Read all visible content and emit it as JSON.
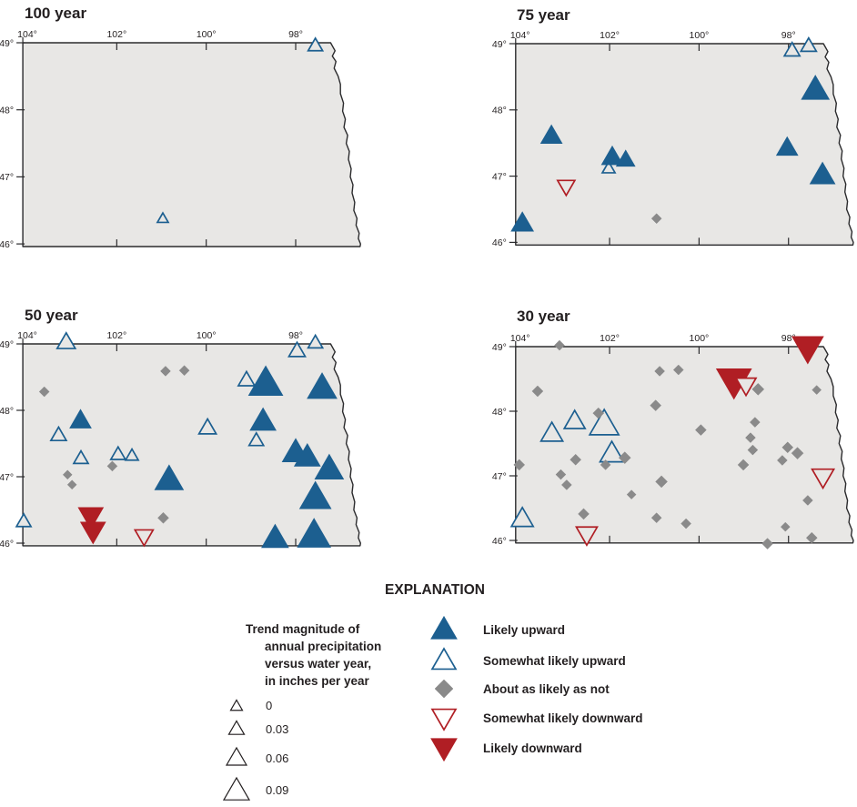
{
  "colors": {
    "map_fill": "#e8e7e5",
    "map_border": "#2b2b2d",
    "blue": "#1c5f90",
    "red": "#b01e24",
    "grey": "#8a8a8a",
    "text": "#231f20",
    "scale_triangle": "#231f20"
  },
  "explanation": {
    "title": "EXPLANATION",
    "size_scale": {
      "heading_lines": [
        "Trend magnitude of",
        "annual precipitation",
        "versus water year,",
        "in inches per year"
      ],
      "entries": [
        {
          "label": "0",
          "size": 13
        },
        {
          "label": "0.03",
          "size": 17
        },
        {
          "label": "0.06",
          "size": 22
        },
        {
          "label": "0.09",
          "size": 28
        }
      ]
    },
    "categories": [
      {
        "type": "likely_upward",
        "label": "Likely upward"
      },
      {
        "type": "somewhat_likely_upward",
        "label": "Somewhat likely upward"
      },
      {
        "type": "about_as_likely_as_not",
        "label": "About as likely as not"
      },
      {
        "type": "somewhat_likely_downward",
        "label": "Somewhat likely downward"
      },
      {
        "type": "likely_downward",
        "label": "Likely downward"
      }
    ]
  },
  "chart_data": {
    "type": "scatter",
    "lon_ticks": [
      {
        "label": "104°",
        "value": 104
      },
      {
        "label": "102°",
        "value": 102
      },
      {
        "label": "100°",
        "value": 100
      },
      {
        "label": "98°",
        "value": 98
      }
    ],
    "lat_ticks": [
      {
        "label": "49°",
        "value": 49
      },
      {
        "label": "48°",
        "value": 48
      },
      {
        "label": "47°",
        "value": 47
      },
      {
        "label": "46°",
        "value": 46
      }
    ],
    "outline": [
      [
        104.1,
        49.0
      ],
      [
        97.22,
        49.0
      ],
      [
        97.12,
        48.88
      ],
      [
        97.18,
        48.8
      ],
      [
        97.1,
        48.72
      ],
      [
        97.14,
        48.62
      ],
      [
        97.05,
        48.5
      ],
      [
        97.0,
        48.38
      ],
      [
        97.0,
        48.24
      ],
      [
        96.93,
        48.1
      ],
      [
        96.95,
        47.98
      ],
      [
        96.89,
        47.86
      ],
      [
        96.92,
        47.74
      ],
      [
        96.84,
        47.62
      ],
      [
        96.87,
        47.5
      ],
      [
        96.8,
        47.38
      ],
      [
        96.82,
        47.26
      ],
      [
        96.76,
        47.12
      ],
      [
        96.78,
        47.0
      ],
      [
        96.72,
        46.88
      ],
      [
        96.74,
        46.76
      ],
      [
        96.68,
        46.62
      ],
      [
        96.7,
        46.5
      ],
      [
        96.63,
        46.38
      ],
      [
        96.65,
        46.28
      ],
      [
        96.58,
        46.16
      ],
      [
        96.6,
        46.08
      ],
      [
        96.55,
        46.0
      ],
      [
        96.56,
        45.96
      ],
      [
        104.1,
        45.96
      ]
    ],
    "maps": [
      {
        "title": "100 year",
        "symbols": [
          {
            "lon": 97.56,
            "lat": 48.96,
            "type": "somewhat_likely_upward",
            "size": 16
          },
          {
            "lon": 100.97,
            "lat": 46.38,
            "type": "somewhat_likely_upward",
            "size": 12
          }
        ]
      },
      {
        "title": "75 year",
        "symbols": [
          {
            "lon": 100.95,
            "lat": 46.36,
            "type": "about_as_likely_as_not",
            "size": 11
          },
          {
            "lon": 97.92,
            "lat": 48.9,
            "type": "somewhat_likely_upward",
            "size": 17
          },
          {
            "lon": 97.55,
            "lat": 48.97,
            "type": "somewhat_likely_upward",
            "size": 17
          },
          {
            "lon": 102.02,
            "lat": 47.12,
            "type": "somewhat_likely_upward",
            "size": 14
          },
          {
            "lon": 102.97,
            "lat": 46.84,
            "type": "somewhat_likely_downward",
            "size": 19
          },
          {
            "lon": 97.4,
            "lat": 48.31,
            "type": "likely_upward",
            "size": 30
          },
          {
            "lon": 103.3,
            "lat": 47.61,
            "type": "likely_upward",
            "size": 23
          },
          {
            "lon": 101.94,
            "lat": 47.29,
            "type": "likely_upward",
            "size": 23
          },
          {
            "lon": 101.64,
            "lat": 47.25,
            "type": "likely_upward",
            "size": 20
          },
          {
            "lon": 103.95,
            "lat": 46.29,
            "type": "likely_upward",
            "size": 24
          },
          {
            "lon": 98.03,
            "lat": 47.43,
            "type": "likely_upward",
            "size": 23
          },
          {
            "lon": 97.24,
            "lat": 47.02,
            "type": "likely_upward",
            "size": 27
          }
        ]
      },
      {
        "title": "50 year",
        "symbols": [
          {
            "lon": 100.91,
            "lat": 48.59,
            "type": "about_as_likely_as_not",
            "size": 11
          },
          {
            "lon": 100.49,
            "lat": 48.6,
            "type": "about_as_likely_as_not",
            "size": 11
          },
          {
            "lon": 103.62,
            "lat": 48.28,
            "type": "about_as_likely_as_not",
            "size": 11
          },
          {
            "lon": 102.1,
            "lat": 47.16,
            "type": "about_as_likely_as_not",
            "size": 11
          },
          {
            "lon": 103.1,
            "lat": 47.03,
            "type": "about_as_likely_as_not",
            "size": 10
          },
          {
            "lon": 103.0,
            "lat": 46.88,
            "type": "about_as_likely_as_not",
            "size": 10
          },
          {
            "lon": 100.96,
            "lat": 46.38,
            "type": "about_as_likely_as_not",
            "size": 12
          },
          {
            "lon": 103.13,
            "lat": 49.03,
            "type": "somewhat_likely_upward",
            "size": 20
          },
          {
            "lon": 97.97,
            "lat": 48.9,
            "type": "somewhat_likely_upward",
            "size": 18
          },
          {
            "lon": 97.56,
            "lat": 49.02,
            "type": "somewhat_likely_upward",
            "size": 16
          },
          {
            "lon": 99.1,
            "lat": 48.46,
            "type": "somewhat_likely_upward",
            "size": 18
          },
          {
            "lon": 103.3,
            "lat": 47.63,
            "type": "somewhat_likely_upward",
            "size": 17
          },
          {
            "lon": 99.97,
            "lat": 47.74,
            "type": "somewhat_likely_upward",
            "size": 19
          },
          {
            "lon": 98.88,
            "lat": 47.55,
            "type": "somewhat_likely_upward",
            "size": 16
          },
          {
            "lon": 102.8,
            "lat": 47.28,
            "type": "somewhat_likely_upward",
            "size": 16
          },
          {
            "lon": 101.97,
            "lat": 47.34,
            "type": "somewhat_likely_upward",
            "size": 16
          },
          {
            "lon": 101.66,
            "lat": 47.32,
            "type": "somewhat_likely_upward",
            "size": 14
          },
          {
            "lon": 104.08,
            "lat": 46.33,
            "type": "somewhat_likely_upward",
            "size": 16
          },
          {
            "lon": 101.39,
            "lat": 46.1,
            "type": "somewhat_likely_downward",
            "size": 20
          },
          {
            "lon": 102.58,
            "lat": 46.4,
            "type": "likely_downward",
            "size": 27
          },
          {
            "lon": 102.53,
            "lat": 46.18,
            "type": "likely_downward",
            "size": 27
          },
          {
            "lon": 98.67,
            "lat": 48.41,
            "type": "likely_upward",
            "size": 37
          },
          {
            "lon": 97.41,
            "lat": 48.34,
            "type": "likely_upward",
            "size": 32
          },
          {
            "lon": 102.81,
            "lat": 47.85,
            "type": "likely_upward",
            "size": 23
          },
          {
            "lon": 98.73,
            "lat": 47.84,
            "type": "likely_upward",
            "size": 28
          },
          {
            "lon": 98.0,
            "lat": 47.37,
            "type": "likely_upward",
            "size": 29
          },
          {
            "lon": 97.74,
            "lat": 47.3,
            "type": "likely_upward",
            "size": 28
          },
          {
            "lon": 97.25,
            "lat": 47.12,
            "type": "likely_upward",
            "size": 31
          },
          {
            "lon": 100.83,
            "lat": 46.96,
            "type": "likely_upward",
            "size": 31
          },
          {
            "lon": 97.56,
            "lat": 46.69,
            "type": "likely_upward",
            "size": 34
          },
          {
            "lon": 98.46,
            "lat": 46.08,
            "type": "likely_upward",
            "size": 29
          },
          {
            "lon": 97.59,
            "lat": 46.12,
            "type": "likely_upward",
            "size": 36
          }
        ]
      },
      {
        "title": "30 year",
        "symbols": [
          {
            "lon": 103.29,
            "lat": 47.66,
            "type": "somewhat_likely_upward",
            "size": 24
          },
          {
            "lon": 102.78,
            "lat": 47.85,
            "type": "somewhat_likely_upward",
            "size": 23
          },
          {
            "lon": 102.12,
            "lat": 47.8,
            "type": "somewhat_likely_upward",
            "size": 32
          },
          {
            "lon": 101.95,
            "lat": 47.35,
            "type": "somewhat_likely_upward",
            "size": 26
          },
          {
            "lon": 103.95,
            "lat": 46.34,
            "type": "somewhat_likely_upward",
            "size": 24
          },
          {
            "lon": 97.57,
            "lat": 48.98,
            "type": "likely_downward",
            "size": 34
          },
          {
            "lon": 99.22,
            "lat": 48.46,
            "type": "likely_downward",
            "size": 38
          },
          {
            "lon": 98.95,
            "lat": 48.4,
            "type": "somewhat_likely_downward",
            "size": 22
          },
          {
            "lon": 102.51,
            "lat": 46.09,
            "type": "somewhat_likely_downward",
            "size": 23
          },
          {
            "lon": 97.23,
            "lat": 46.98,
            "type": "somewhat_likely_downward",
            "size": 24
          },
          {
            "lon": 103.12,
            "lat": 49.02,
            "type": "about_as_likely_as_not",
            "size": 11
          },
          {
            "lon": 103.61,
            "lat": 48.31,
            "type": "about_as_likely_as_not",
            "size": 12
          },
          {
            "lon": 102.25,
            "lat": 47.97,
            "type": "about_as_likely_as_not",
            "size": 12
          },
          {
            "lon": 100.88,
            "lat": 48.62,
            "type": "about_as_likely_as_not",
            "size": 11
          },
          {
            "lon": 100.46,
            "lat": 48.64,
            "type": "about_as_likely_as_not",
            "size": 11
          },
          {
            "lon": 100.97,
            "lat": 48.09,
            "type": "about_as_likely_as_not",
            "size": 12
          },
          {
            "lon": 98.68,
            "lat": 48.34,
            "type": "about_as_likely_as_not",
            "size": 13
          },
          {
            "lon": 97.37,
            "lat": 48.33,
            "type": "about_as_likely_as_not",
            "size": 10
          },
          {
            "lon": 99.96,
            "lat": 47.71,
            "type": "about_as_likely_as_not",
            "size": 12
          },
          {
            "lon": 98.75,
            "lat": 47.83,
            "type": "about_as_likely_as_not",
            "size": 11
          },
          {
            "lon": 98.85,
            "lat": 47.59,
            "type": "about_as_likely_as_not",
            "size": 11
          },
          {
            "lon": 98.8,
            "lat": 47.4,
            "type": "about_as_likely_as_not",
            "size": 11
          },
          {
            "lon": 98.02,
            "lat": 47.44,
            "type": "about_as_likely_as_not",
            "size": 12
          },
          {
            "lon": 97.8,
            "lat": 47.35,
            "type": "about_as_likely_as_not",
            "size": 13
          },
          {
            "lon": 98.14,
            "lat": 47.24,
            "type": "about_as_likely_as_not",
            "size": 11
          },
          {
            "lon": 99.01,
            "lat": 47.17,
            "type": "about_as_likely_as_not",
            "size": 12
          },
          {
            "lon": 102.76,
            "lat": 47.25,
            "type": "about_as_likely_as_not",
            "size": 12
          },
          {
            "lon": 102.09,
            "lat": 47.17,
            "type": "about_as_likely_as_not",
            "size": 11
          },
          {
            "lon": 101.66,
            "lat": 47.28,
            "type": "about_as_likely_as_not",
            "size": 13
          },
          {
            "lon": 104.02,
            "lat": 47.17,
            "type": "about_as_likely_as_not",
            "size": 12
          },
          {
            "lon": 103.09,
            "lat": 47.02,
            "type": "about_as_likely_as_not",
            "size": 11
          },
          {
            "lon": 102.96,
            "lat": 46.86,
            "type": "about_as_likely_as_not",
            "size": 11
          },
          {
            "lon": 101.51,
            "lat": 46.71,
            "type": "about_as_likely_as_not",
            "size": 10
          },
          {
            "lon": 102.58,
            "lat": 46.41,
            "type": "about_as_likely_as_not",
            "size": 12
          },
          {
            "lon": 100.84,
            "lat": 46.91,
            "type": "about_as_likely_as_not",
            "size": 13
          },
          {
            "lon": 97.57,
            "lat": 46.62,
            "type": "about_as_likely_as_not",
            "size": 11
          },
          {
            "lon": 100.95,
            "lat": 46.35,
            "type": "about_as_likely_as_not",
            "size": 11
          },
          {
            "lon": 100.29,
            "lat": 46.26,
            "type": "about_as_likely_as_not",
            "size": 11
          },
          {
            "lon": 98.07,
            "lat": 46.21,
            "type": "about_as_likely_as_not",
            "size": 10
          },
          {
            "lon": 97.48,
            "lat": 46.04,
            "type": "about_as_likely_as_not",
            "size": 12
          },
          {
            "lon": 98.47,
            "lat": 45.95,
            "type": "about_as_likely_as_not",
            "size": 12
          }
        ]
      }
    ]
  }
}
